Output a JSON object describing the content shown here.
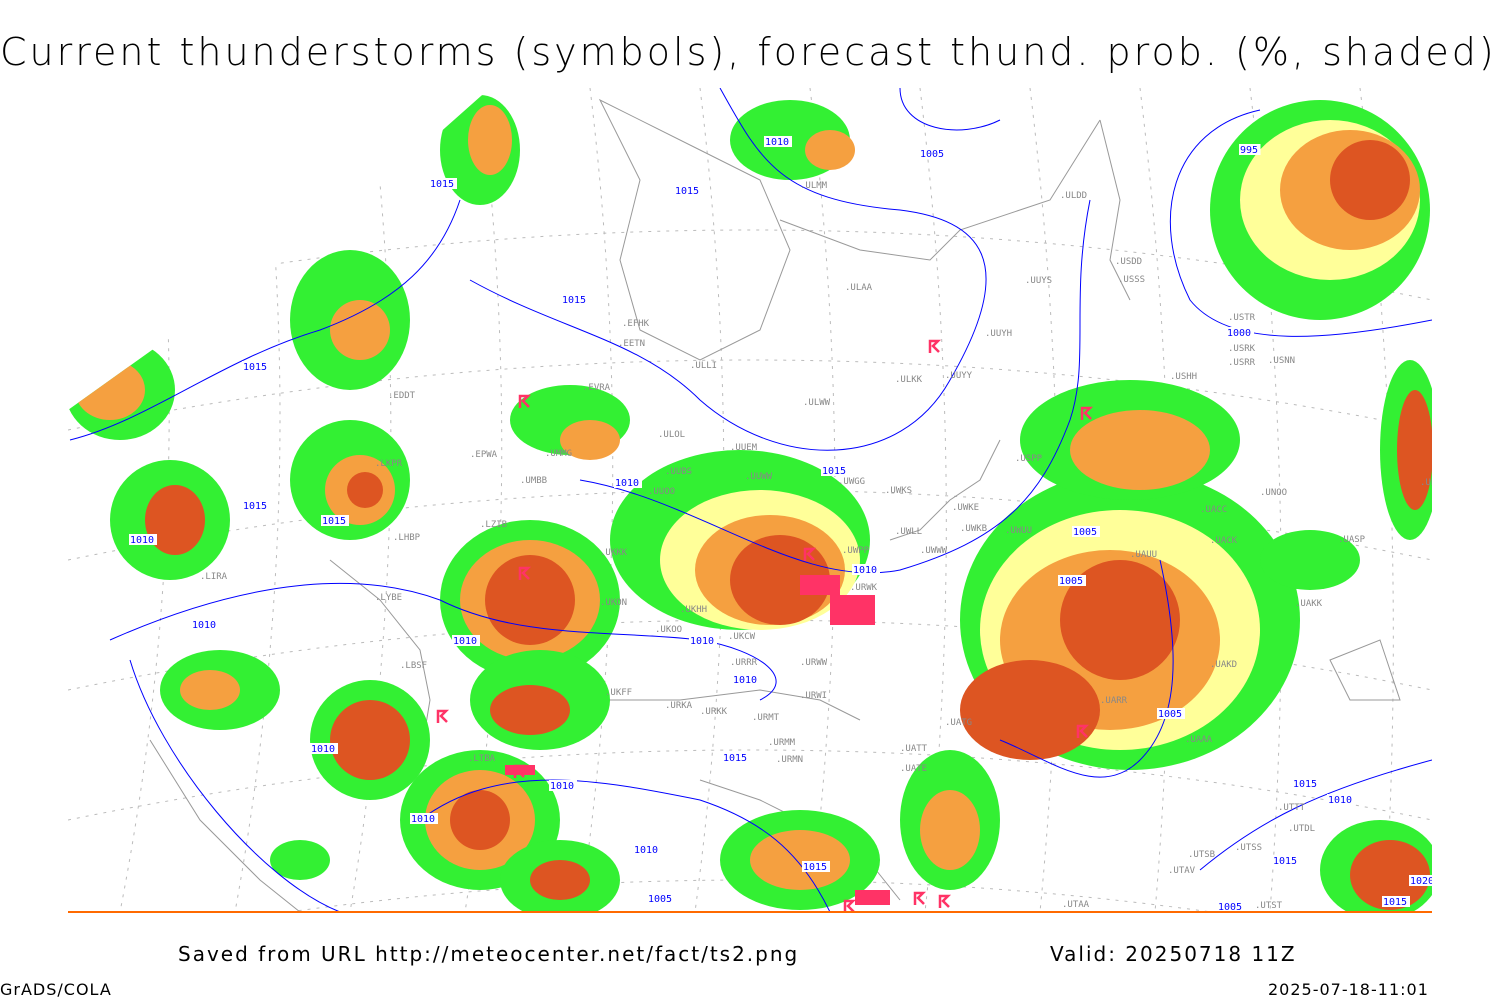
{
  "title": "Current thunderstorms (symbols), forecast thund. prob. (%, shaded)",
  "footer": {
    "source": "Saved from URL http://meteocenter.net/fact/ts2.png",
    "valid": "Valid: 20250718 11Z",
    "software": "GrADS/COLA",
    "timestamp": "2025-07-18-11:01"
  },
  "colors": {
    "prob_low": "#33f033",
    "prob_mid": "#ffff99",
    "prob_high": "#f5a040",
    "prob_very_high": "#dd5522",
    "thunderstorm_symbol": "#ff3366",
    "isobar": "#0000ff",
    "borders": "#999999"
  },
  "stations": [
    "ULMM",
    "ULDD",
    "ULAA",
    "UUYS",
    "USDD",
    "UUYH",
    "ULKK",
    "UUYY",
    "ULLI",
    "EFHK",
    "EETN",
    "EVRA",
    "ULWW",
    "ULOL",
    "UUEM",
    "EDDT",
    "EPWA",
    "UMMG",
    "UMBB",
    "UUWW",
    "UWGG",
    "UWKS",
    "USPP",
    "UUOO",
    "UUBS",
    "UWKE",
    "UWKB",
    "UWUU",
    "UWLL",
    "UWWW",
    "UWPP",
    "LKPR",
    "LZIB",
    "LHBP",
    "UKKK",
    "LIRA",
    "LYBE",
    "UKHH",
    "UKOO",
    "UKON",
    "LBSF",
    "UKCW",
    "URRR",
    "URWW",
    "URWK",
    "UWSS",
    "LTBA",
    "UKFF",
    "URKA",
    "URKK",
    "URMT",
    "URWI",
    "URMM",
    "URMN",
    "UATT",
    "UATE",
    "UATG",
    "USSS",
    "UNOO",
    "UACC",
    "UACK",
    "UASP",
    "UAKK",
    "UAKD",
    "UAAA",
    "UTTT",
    "UTDL",
    "UTSS",
    "UTSB",
    "UTAV",
    "UTAA",
    "UTST",
    "USHH",
    "USRR",
    "USNN",
    "USRK",
    "USTR",
    "UAUU",
    "UARR",
    "UBBB"
  ],
  "isobar_labels": [
    "1010",
    "1005",
    "1015",
    "1015",
    "995",
    "1015",
    "1015",
    "1015",
    "1010",
    "1015",
    "1015",
    "1010",
    "1005",
    "1010",
    "1005",
    "1010",
    "1010",
    "1010",
    "1010",
    "1000",
    "1005",
    "1010",
    "1015",
    "1010",
    "1010",
    "1015",
    "1010",
    "1010",
    "1015",
    "1015",
    "1005",
    "1005",
    "1015",
    "1020"
  ]
}
